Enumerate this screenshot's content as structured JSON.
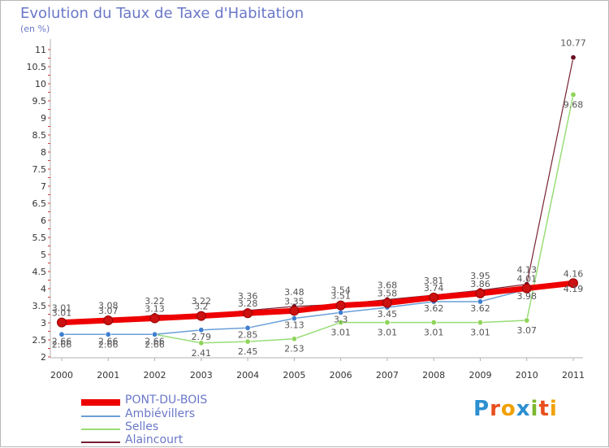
{
  "title": "Evolution du Taux de Taxe d'Habitation",
  "unit_label": "(en %)",
  "brand": "Proxiti",
  "chart_data": {
    "type": "line",
    "title": "Evolution du Taux de Taxe d'Habitation",
    "ylabel": "(en %)",
    "xlabel": "",
    "x": [
      2000,
      2001,
      2002,
      2003,
      2004,
      2005,
      2006,
      2007,
      2008,
      2009,
      2010,
      2011
    ],
    "ylim": [
      2,
      11
    ],
    "yticks": [
      2,
      2.5,
      3,
      3.5,
      4,
      4.5,
      5,
      5.5,
      6,
      6.5,
      7,
      7.5,
      8,
      8.5,
      9,
      9.5,
      10,
      10.5,
      11
    ],
    "ytick_labels": [
      "2",
      "2.5",
      "3",
      "3.5",
      "4",
      "4.5",
      "5",
      "5.5",
      "6",
      "6.5",
      "7",
      "7.5",
      "8",
      "8.5",
      "9",
      "9.5",
      "10",
      "10.5",
      "11"
    ],
    "grid": false,
    "legend_position": "bottom-left",
    "series": [
      {
        "name": "PONT-DU-BOIS",
        "color": "#ee0000",
        "values": [
          3.01,
          3.07,
          3.13,
          3.2,
          3.28,
          3.35,
          3.51,
          3.58,
          3.74,
          3.86,
          4.01,
          4.16
        ],
        "labels": [
          "3.01",
          "3.07",
          "3.13",
          "3.2",
          "3.28",
          "3.35",
          "3.51",
          "3.58",
          "3.74",
          "3.86",
          "4.01",
          "4.16"
        ]
      },
      {
        "name": "Ambiévillers",
        "color": "#6a9fd8",
        "values": [
          2.66,
          2.66,
          2.66,
          2.79,
          2.85,
          3.13,
          3.3,
          3.45,
          3.62,
          3.62,
          3.98,
          4.19
        ],
        "labels": [
          "2.66",
          "2.66",
          "2.66",
          "2.79",
          "2.85",
          "3.13",
          "3.3",
          "3.45",
          "3.62",
          "3.62",
          "3.98",
          "4.19"
        ]
      },
      {
        "name": "Selles",
        "color": "#99dd77",
        "values": [
          2.66,
          2.66,
          2.66,
          2.41,
          2.45,
          2.53,
          3.01,
          3.01,
          3.01,
          3.01,
          3.07,
          9.68
        ],
        "labels": [
          "2.66",
          "2.66",
          "2.66",
          "2.41",
          "2.45",
          "2.53",
          "3.01",
          "3.01",
          "3.01",
          "3.01",
          "3.07",
          "9.68"
        ]
      },
      {
        "name": "Alaincourt",
        "color": "#772233",
        "values": [
          3.01,
          3.08,
          3.22,
          3.22,
          3.36,
          3.48,
          3.54,
          3.68,
          3.81,
          3.95,
          4.13,
          10.77
        ],
        "labels": [
          "3.01",
          "3.08",
          "3.22",
          "3.22",
          "3.36",
          "3.48",
          "3.54",
          "3.68",
          "3.81",
          "3.95",
          "4.13",
          "10.77"
        ]
      }
    ]
  }
}
